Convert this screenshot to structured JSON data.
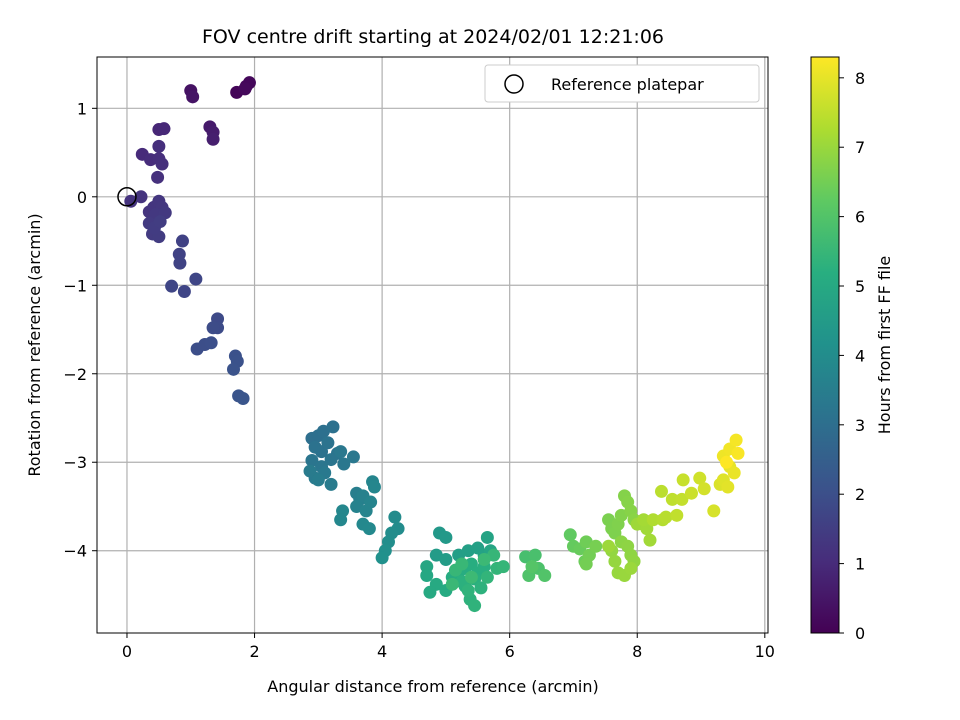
{
  "chart_data": {
    "type": "scatter",
    "title": "FOV centre drift starting at 2024/02/01 12:21:06",
    "xlabel": "Angular distance from reference (arcmin)",
    "ylabel": "Rotation from reference (arcmin)",
    "xlim": [
      -0.47,
      10.05
    ],
    "ylim": [
      -4.93,
      1.58
    ],
    "xticks": [
      0,
      2,
      4,
      6,
      8,
      10
    ],
    "yticks": [
      -4,
      -3,
      -2,
      -1,
      0,
      1
    ],
    "grid": true,
    "legend": {
      "position": "upper-right",
      "entries": [
        "Reference platepar"
      ]
    },
    "reference_point": {
      "x": 0,
      "y": 0
    },
    "colorbar": {
      "label": "Hours from first FF file",
      "min": 0,
      "max": 8.3,
      "ticks": [
        0,
        1,
        2,
        3,
        4,
        5,
        6,
        7,
        8
      ],
      "colormap": "viridis"
    },
    "points": [
      [
        1.72,
        1.18,
        0.1
      ],
      [
        1.87,
        1.25,
        0.12
      ],
      [
        1.92,
        1.29,
        0.15
      ],
      [
        1.85,
        1.22,
        0.18
      ],
      [
        1.0,
        1.2,
        0.4
      ],
      [
        1.03,
        1.13,
        0.45
      ],
      [
        1.3,
        0.79,
        0.6
      ],
      [
        1.35,
        0.73,
        0.65
      ],
      [
        1.35,
        0.65,
        0.7
      ],
      [
        0.5,
        0.76,
        0.9
      ],
      [
        0.58,
        0.77,
        0.92
      ],
      [
        0.24,
        0.48,
        1.0
      ],
      [
        0.37,
        0.42,
        1.05
      ],
      [
        0.5,
        0.43,
        1.08
      ],
      [
        0.5,
        0.57,
        1.1
      ],
      [
        0.55,
        0.37,
        1.12
      ],
      [
        0.48,
        0.22,
        1.15
      ],
      [
        0.06,
        -0.05,
        1.2
      ],
      [
        0.22,
        0.0,
        1.22
      ],
      [
        0.35,
        -0.17,
        1.25
      ],
      [
        0.42,
        -0.12,
        1.27
      ],
      [
        0.5,
        -0.05,
        1.3
      ],
      [
        0.55,
        -0.12,
        1.32
      ],
      [
        0.45,
        -0.2,
        1.35
      ],
      [
        0.6,
        -0.18,
        1.37
      ],
      [
        0.35,
        -0.3,
        1.4
      ],
      [
        0.4,
        -0.42,
        1.42
      ],
      [
        0.5,
        -0.45,
        1.45
      ],
      [
        0.43,
        -0.35,
        1.47
      ],
      [
        0.52,
        -0.28,
        1.5
      ],
      [
        0.87,
        -0.5,
        1.6
      ],
      [
        0.82,
        -0.65,
        1.62
      ],
      [
        0.83,
        -0.75,
        1.65
      ],
      [
        0.7,
        -1.01,
        1.7
      ],
      [
        0.9,
        -1.07,
        1.72
      ],
      [
        1.08,
        -0.93,
        1.75
      ],
      [
        1.42,
        -1.38,
        1.85
      ],
      [
        1.42,
        -1.48,
        1.87
      ],
      [
        1.35,
        -1.48,
        1.9
      ],
      [
        1.1,
        -1.72,
        1.95
      ],
      [
        1.22,
        -1.67,
        1.97
      ],
      [
        1.32,
        -1.65,
        2.0
      ],
      [
        1.7,
        -1.8,
        2.05
      ],
      [
        1.73,
        -1.86,
        2.07
      ],
      [
        1.67,
        -1.95,
        2.1
      ],
      [
        1.75,
        -2.25,
        2.15
      ],
      [
        1.82,
        -2.28,
        2.17
      ],
      [
        2.9,
        -2.73,
        3.0
      ],
      [
        3.0,
        -2.7,
        3.02
      ],
      [
        3.08,
        -2.65,
        3.05
      ],
      [
        3.23,
        -2.6,
        3.07
      ],
      [
        2.95,
        -2.83,
        3.1
      ],
      [
        3.05,
        -2.88,
        3.12
      ],
      [
        3.15,
        -2.78,
        3.15
      ],
      [
        3.3,
        -2.9,
        3.17
      ],
      [
        3.2,
        -2.97,
        3.2
      ],
      [
        2.9,
        -2.98,
        3.22
      ],
      [
        3.05,
        -3.05,
        3.25
      ],
      [
        3.4,
        -3.02,
        3.27
      ],
      [
        3.35,
        -2.88,
        3.3
      ],
      [
        3.55,
        -2.94,
        3.32
      ],
      [
        3.1,
        -3.12,
        3.35
      ],
      [
        2.95,
        -3.18,
        3.37
      ],
      [
        2.87,
        -3.1,
        3.4
      ],
      [
        3.2,
        -3.25,
        3.42
      ],
      [
        3.0,
        -3.2,
        3.45
      ],
      [
        3.6,
        -3.35,
        3.5
      ],
      [
        3.65,
        -3.42,
        3.55
      ],
      [
        3.7,
        -3.38,
        3.6
      ],
      [
        3.6,
        -3.5,
        3.65
      ],
      [
        3.75,
        -3.55,
        3.7
      ],
      [
        3.82,
        -3.45,
        3.72
      ],
      [
        3.85,
        -3.22,
        3.75
      ],
      [
        3.88,
        -3.28,
        3.77
      ],
      [
        3.38,
        -3.55,
        3.8
      ],
      [
        3.35,
        -3.65,
        3.82
      ],
      [
        3.7,
        -3.7,
        3.85
      ],
      [
        3.8,
        -3.75,
        3.87
      ],
      [
        4.2,
        -3.62,
        3.95
      ],
      [
        4.25,
        -3.75,
        3.97
      ],
      [
        4.15,
        -3.8,
        4.0
      ],
      [
        4.1,
        -3.9,
        4.05
      ],
      [
        4.05,
        -4.0,
        4.1
      ],
      [
        4.0,
        -4.08,
        4.15
      ],
      [
        4.9,
        -3.8,
        4.4
      ],
      [
        5.0,
        -3.85,
        4.45
      ],
      [
        4.85,
        -4.05,
        4.5
      ],
      [
        5.0,
        -4.1,
        4.55
      ],
      [
        5.2,
        -4.05,
        4.6
      ],
      [
        5.35,
        -4.0,
        4.65
      ],
      [
        5.5,
        -3.97,
        4.7
      ],
      [
        5.6,
        -4.05,
        4.75
      ],
      [
        5.65,
        -3.85,
        4.8
      ],
      [
        5.7,
        -4.0,
        4.85
      ],
      [
        4.7,
        -4.18,
        4.9
      ],
      [
        4.7,
        -4.28,
        4.95
      ],
      [
        4.85,
        -4.38,
        5.0
      ],
      [
        4.75,
        -4.47,
        5.02
      ],
      [
        5.0,
        -4.45,
        5.05
      ],
      [
        5.1,
        -4.3,
        5.07
      ],
      [
        5.2,
        -4.25,
        5.1
      ],
      [
        5.3,
        -4.2,
        5.12
      ],
      [
        5.4,
        -4.15,
        5.15
      ],
      [
        5.5,
        -4.25,
        5.17
      ],
      [
        5.6,
        -4.18,
        5.2
      ],
      [
        5.45,
        -4.32,
        5.22
      ],
      [
        5.3,
        -4.4,
        5.25
      ],
      [
        5.25,
        -4.35,
        5.27
      ],
      [
        5.55,
        -4.42,
        5.3
      ],
      [
        5.38,
        -4.55,
        5.32
      ],
      [
        5.45,
        -4.62,
        5.35
      ],
      [
        5.35,
        -4.45,
        5.37
      ],
      [
        5.65,
        -4.3,
        5.4
      ],
      [
        5.8,
        -4.2,
        5.42
      ],
      [
        5.9,
        -4.18,
        5.45
      ],
      [
        5.75,
        -4.05,
        5.47
      ],
      [
        5.15,
        -4.22,
        5.5
      ],
      [
        5.25,
        -4.15,
        5.52
      ],
      [
        5.1,
        -4.38,
        5.55
      ],
      [
        5.6,
        -4.1,
        5.57
      ],
      [
        5.4,
        -4.3,
        5.6
      ],
      [
        6.25,
        -4.07,
        5.8
      ],
      [
        6.4,
        -4.05,
        5.85
      ],
      [
        6.45,
        -4.2,
        5.9
      ],
      [
        6.3,
        -4.28,
        5.95
      ],
      [
        6.55,
        -4.28,
        6.0
      ],
      [
        6.35,
        -4.18,
        6.05
      ],
      [
        6.95,
        -3.82,
        6.25
      ],
      [
        7.0,
        -3.95,
        6.3
      ],
      [
        7.1,
        -3.98,
        6.35
      ],
      [
        7.18,
        -4.12,
        6.4
      ],
      [
        7.2,
        -3.9,
        6.45
      ],
      [
        7.25,
        -4.05,
        6.5
      ],
      [
        7.2,
        -4.15,
        6.52
      ],
      [
        7.35,
        -3.95,
        6.55
      ],
      [
        7.55,
        -3.65,
        6.6
      ],
      [
        7.6,
        -3.75,
        6.62
      ],
      [
        7.65,
        -3.8,
        6.65
      ],
      [
        7.7,
        -3.7,
        6.67
      ],
      [
        7.75,
        -3.6,
        6.7
      ],
      [
        7.8,
        -3.38,
        6.72
      ],
      [
        7.85,
        -3.45,
        6.75
      ],
      [
        7.9,
        -3.55,
        6.77
      ],
      [
        7.95,
        -3.65,
        6.8
      ],
      [
        7.75,
        -3.9,
        6.82
      ],
      [
        7.85,
        -3.95,
        6.85
      ],
      [
        7.9,
        -4.05,
        6.87
      ],
      [
        7.95,
        -4.12,
        6.9
      ],
      [
        7.6,
        -4.0,
        6.92
      ],
      [
        7.65,
        -4.12,
        6.95
      ],
      [
        7.7,
        -4.25,
        6.97
      ],
      [
        7.8,
        -4.28,
        7.0
      ],
      [
        7.9,
        -4.2,
        7.02
      ],
      [
        7.55,
        -3.95,
        7.05
      ],
      [
        8.0,
        -3.7,
        7.07
      ],
      [
        8.15,
        -3.75,
        7.1
      ],
      [
        8.2,
        -3.88,
        7.12
      ],
      [
        8.1,
        -3.65,
        7.15
      ],
      [
        8.25,
        -3.65,
        7.3
      ],
      [
        8.4,
        -3.65,
        7.35
      ],
      [
        8.45,
        -3.62,
        7.4
      ],
      [
        8.38,
        -3.33,
        7.45
      ],
      [
        8.55,
        -3.42,
        7.5
      ],
      [
        8.62,
        -3.6,
        7.52
      ],
      [
        8.7,
        -3.42,
        7.55
      ],
      [
        8.72,
        -3.2,
        7.6
      ],
      [
        8.85,
        -3.35,
        7.65
      ],
      [
        8.98,
        -3.18,
        7.7
      ],
      [
        9.05,
        -3.3,
        7.75
      ],
      [
        9.2,
        -3.55,
        7.8
      ],
      [
        9.3,
        -3.25,
        7.85
      ],
      [
        9.35,
        -3.2,
        7.9
      ],
      [
        9.42,
        -3.28,
        7.95
      ],
      [
        9.45,
        -3.05,
        8.0
      ],
      [
        9.52,
        -3.12,
        8.05
      ],
      [
        9.35,
        -2.93,
        8.1
      ],
      [
        9.45,
        -2.85,
        8.15
      ],
      [
        9.55,
        -2.75,
        8.2
      ],
      [
        9.58,
        -2.9,
        8.25
      ],
      [
        9.4,
        -3.0,
        8.3
      ]
    ]
  }
}
